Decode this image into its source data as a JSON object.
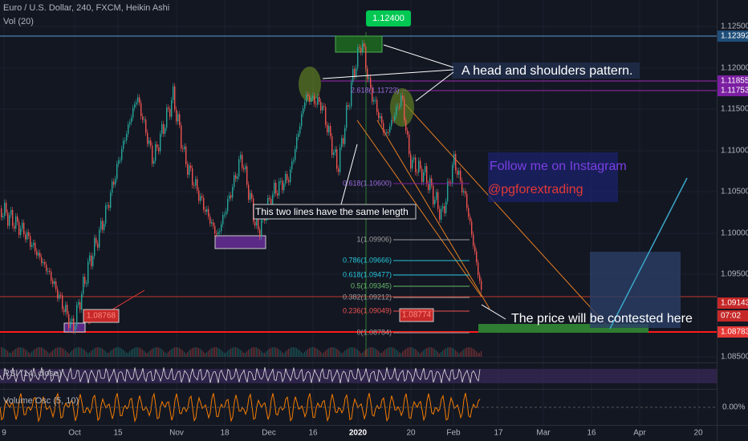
{
  "header": {
    "symbol": "Euro / U.S. Dollar, 240, FXCM, Heikin Ashi",
    "volume": "Vol (20)"
  },
  "price_axis": {
    "labels": [
      "1.12500",
      "1.12000",
      "1.11500",
      "1.11000",
      "1.10500",
      "1.10000",
      "1.09500",
      "1.08500"
    ],
    "badges": [
      "1.12392",
      "1.11855",
      "1.11753",
      "1.09143",
      "07:02",
      "1.08783"
    ]
  },
  "time_axis": {
    "labels": [
      "9",
      "Oct",
      "15",
      "Nov",
      "18",
      "Dec",
      "16",
      "2020",
      "20",
      "Feb",
      "17",
      "Mar",
      "16",
      "Apr",
      "20"
    ]
  },
  "annotations": {
    "top_price": "1.12400",
    "head_shoulders": "A head and shoulders pattern.",
    "instagram_1": "Follow me on Instagram",
    "instagram_2": "@pgforextrading",
    "same_length": "This two lines have the same length",
    "contested": "The price will be contested here",
    "low_left": "1.08768",
    "low_right": "1.08774"
  },
  "fib": {
    "levels": [
      "1(1.09906)",
      "0.786(1.09666)",
      "0.618(1.09477)",
      "0.5(1.09345)",
      "0.382(1.09212)",
      "0.236(1.09049)",
      "0(1.08784)"
    ],
    "upper": "0.618(1.10600)",
    "ext": "2.618(1.11723)"
  },
  "panes": {
    "rsi": "RSI (14, close)",
    "osc": "Volume Osc (5, 10)",
    "osc_value": "0.00%"
  }
}
